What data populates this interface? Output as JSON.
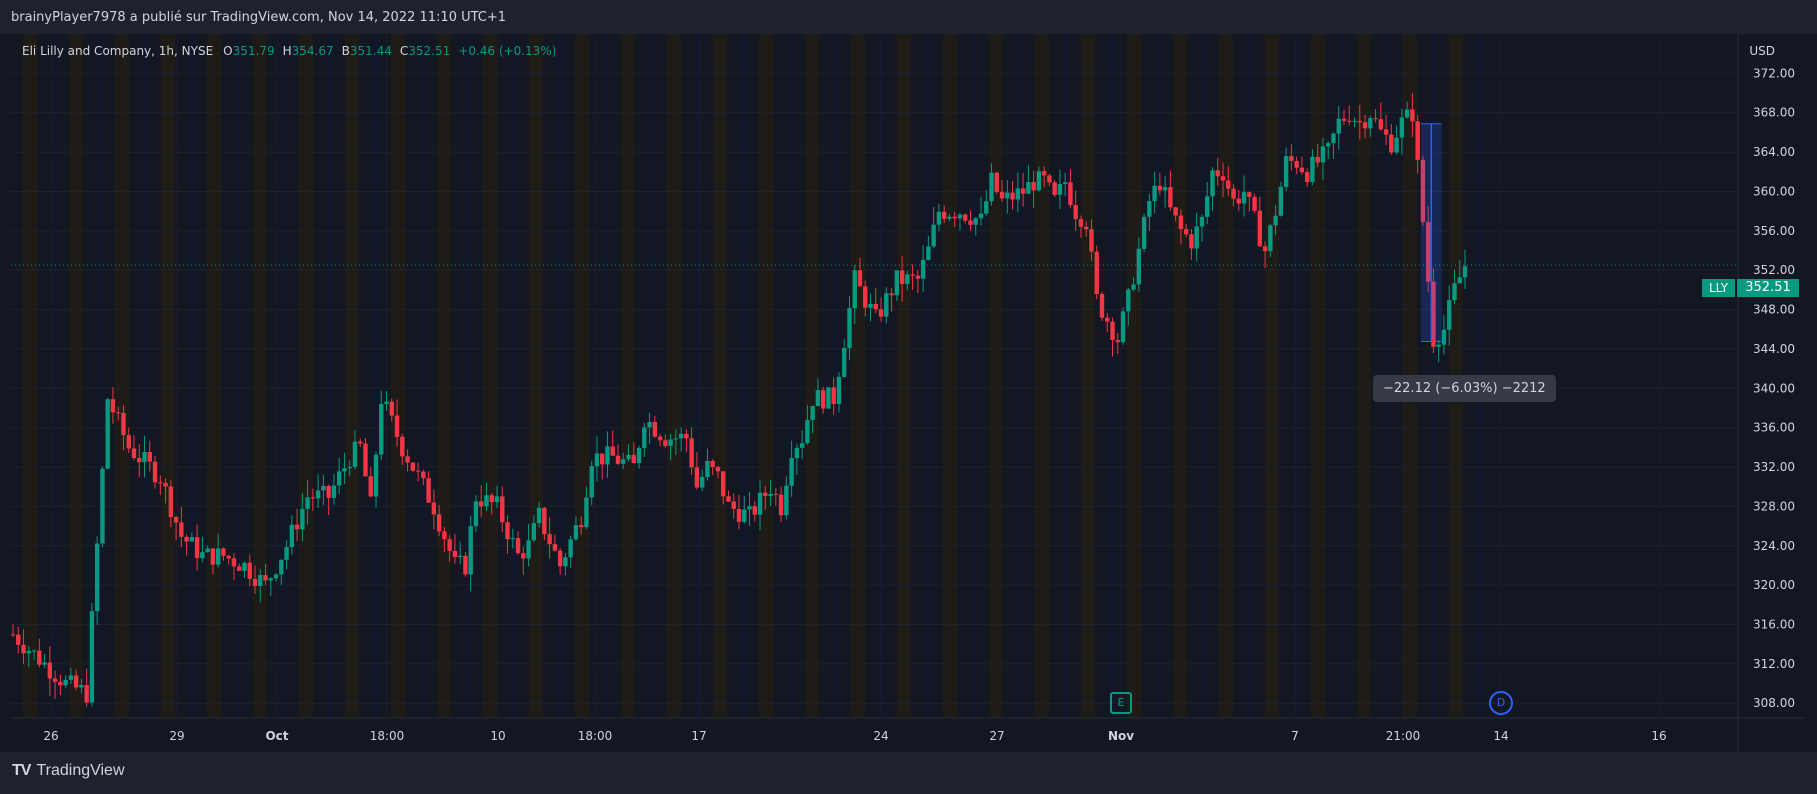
{
  "header": {
    "text": "brainyPlayer7978 a publié sur TradingView.com, Nov 14, 2022 11:10 UTC+1"
  },
  "legend": {
    "title": "Eli Lilly and Company, 1h, NYSE",
    "o_label": "O",
    "o": "351.79",
    "h_label": "H",
    "h": "354.67",
    "l_label": "B",
    "l": "351.44",
    "c_label": "C",
    "c": "352.51",
    "change": "+0.46 (+0.13%)"
  },
  "currency": "USD",
  "last_price": {
    "symbol": "LLY",
    "value": "352.51"
  },
  "measure": {
    "label": "−22.12 (−6.03%) −2212"
  },
  "events": {
    "earnings": "E",
    "dividend": "D"
  },
  "footer": {
    "brand": "TradingView"
  },
  "colors": {
    "up": "#089981",
    "down": "#f23645",
    "bg": "#131722",
    "grid": "#1e222d",
    "measure": "#2962ff"
  },
  "chart_data": {
    "type": "candlestick",
    "symbol": "LLY",
    "interval": "1h",
    "y_ticks": [
      "372.00",
      "368.00",
      "364.00",
      "360.00",
      "356.00",
      "352.00",
      "348.00",
      "344.00",
      "340.00",
      "336.00",
      "332.00",
      "328.00",
      "324.00",
      "320.00",
      "316.00",
      "312.00",
      "308.00"
    ],
    "y_range": [
      306.5,
      376
    ],
    "x_ticks": [
      "26",
      "29",
      "Oct",
      "18:00",
      "10",
      "18:00",
      "17",
      "24",
      "27",
      "Nov",
      "7",
      "21:00",
      "14",
      "16"
    ],
    "anchors": [
      [
        0,
        315
      ],
      [
        10,
        310
      ],
      [
        14,
        309
      ],
      [
        18,
        339
      ],
      [
        22,
        334
      ],
      [
        28,
        331
      ],
      [
        32,
        325
      ],
      [
        36,
        323
      ],
      [
        40,
        323
      ],
      [
        44,
        322
      ],
      [
        48,
        320
      ],
      [
        52,
        324
      ],
      [
        56,
        329
      ],
      [
        60,
        329
      ],
      [
        64,
        333
      ],
      [
        66,
        334
      ],
      [
        68,
        328
      ],
      [
        70,
        339
      ],
      [
        74,
        334
      ],
      [
        80,
        328
      ],
      [
        84,
        322
      ],
      [
        86,
        322
      ],
      [
        88,
        329
      ],
      [
        92,
        328
      ],
      [
        96,
        323
      ],
      [
        98,
        324
      ],
      [
        100,
        327
      ],
      [
        104,
        322
      ],
      [
        108,
        327
      ],
      [
        110,
        333
      ],
      [
        114,
        333
      ],
      [
        118,
        332
      ],
      [
        120,
        337
      ],
      [
        124,
        335
      ],
      [
        128,
        335
      ],
      [
        130,
        330
      ],
      [
        132,
        332
      ],
      [
        134,
        331
      ],
      [
        136,
        328
      ],
      [
        140,
        327
      ],
      [
        144,
        330
      ],
      [
        146,
        328
      ],
      [
        148,
        334
      ],
      [
        150,
        335
      ],
      [
        152,
        339
      ],
      [
        156,
        339
      ],
      [
        158,
        345
      ],
      [
        160,
        351
      ],
      [
        164,
        347
      ],
      [
        168,
        351
      ],
      [
        172,
        351
      ],
      [
        174,
        354
      ],
      [
        176,
        358
      ],
      [
        180,
        358
      ],
      [
        184,
        357
      ],
      [
        186,
        361
      ],
      [
        188,
        359
      ],
      [
        192,
        360
      ],
      [
        194,
        361
      ],
      [
        196,
        361
      ],
      [
        198,
        359
      ],
      [
        200,
        361
      ],
      [
        202,
        358
      ],
      [
        204,
        357
      ],
      [
        206,
        349
      ],
      [
        208,
        347
      ],
      [
        210,
        345
      ],
      [
        212,
        349
      ],
      [
        214,
        354
      ],
      [
        216,
        359
      ],
      [
        218,
        361
      ],
      [
        220,
        358
      ],
      [
        222,
        356
      ],
      [
        224,
        355
      ],
      [
        226,
        357
      ],
      [
        228,
        362
      ],
      [
        230,
        362
      ],
      [
        232,
        359
      ],
      [
        234,
        360
      ],
      [
        236,
        357
      ],
      [
        238,
        354
      ],
      [
        240,
        358
      ],
      [
        242,
        363
      ],
      [
        244,
        363
      ],
      [
        246,
        362
      ],
      [
        248,
        363
      ],
      [
        250,
        364
      ],
      [
        252,
        367
      ],
      [
        254,
        368
      ],
      [
        256,
        367
      ],
      [
        258,
        368
      ],
      [
        260,
        366
      ],
      [
        262,
        365
      ],
      [
        264,
        367
      ],
      [
        266,
        368
      ],
      [
        268,
        357
      ],
      [
        270,
        345
      ],
      [
        272,
        346
      ],
      [
        274,
        350
      ],
      [
        276,
        352.5
      ]
    ],
    "measure": {
      "from": 366.88,
      "to": 344.76,
      "change": "−22.12 (−6.03%) −2212"
    }
  }
}
